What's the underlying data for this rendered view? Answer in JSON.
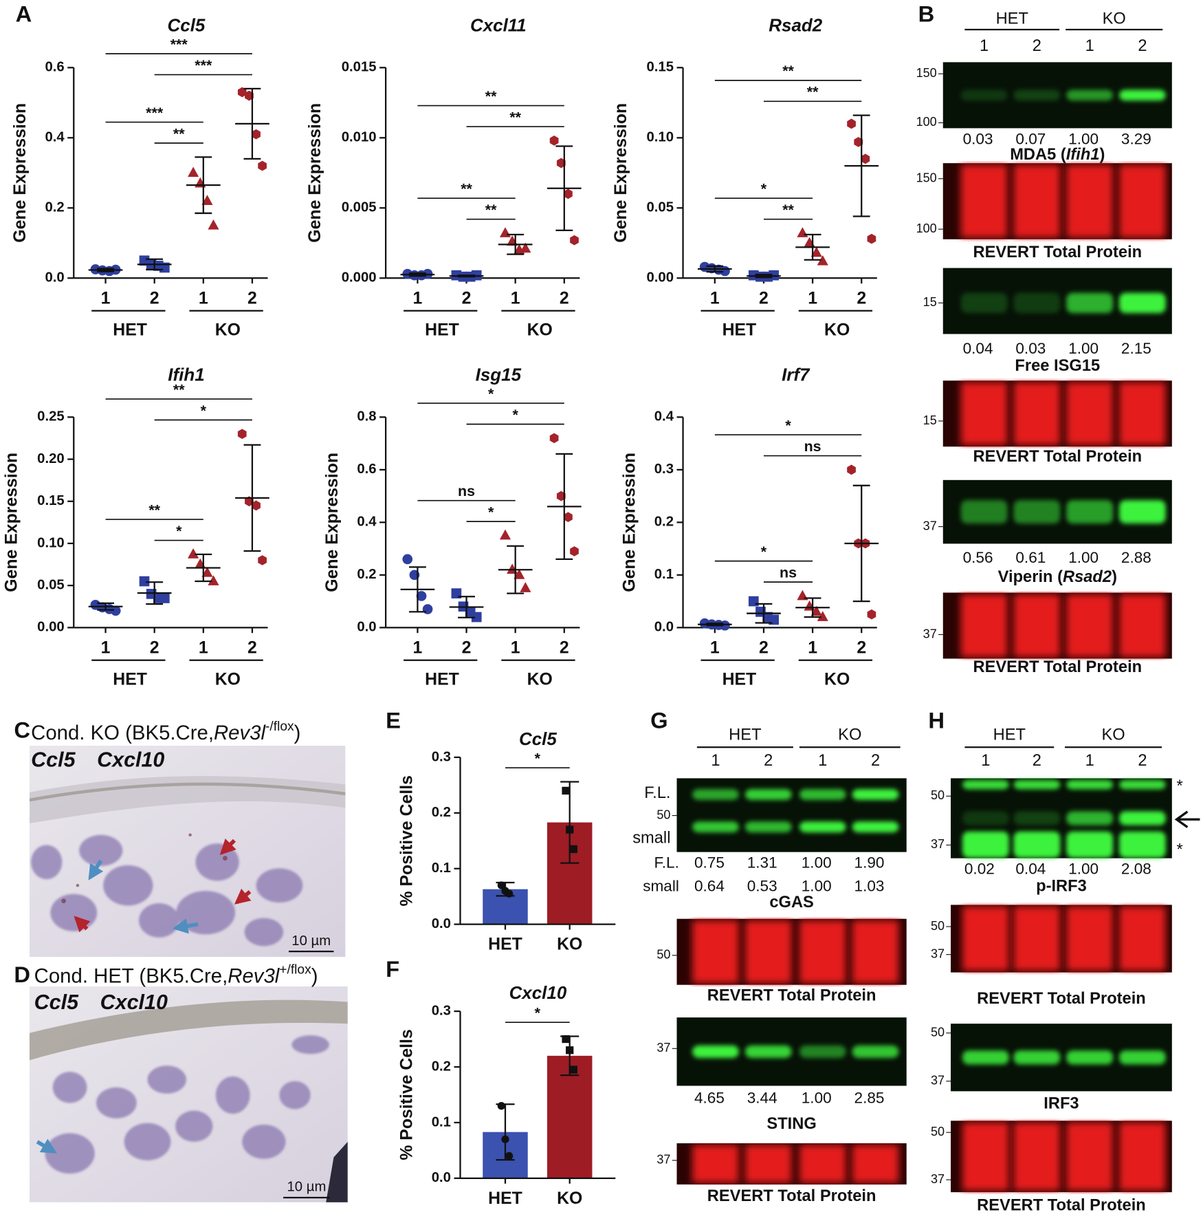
{
  "panel_letters": [
    "A",
    "B",
    "C",
    "D",
    "E",
    "F",
    "G",
    "H"
  ],
  "chart_data": [
    {
      "type": "dotplot",
      "title": "Ccl5",
      "y_label": "Gene Expression",
      "categories": [
        "1",
        "2",
        "1",
        "2"
      ],
      "groups": [
        "HET",
        "KO"
      ],
      "colors": [
        "#2f3f9f",
        "#2f3f9f",
        "#a4232b",
        "#a4232b"
      ],
      "markers": [
        "circle",
        "square",
        "triangle",
        "hexagon"
      ],
      "points": [
        [
          0.025,
          0.022,
          0.02,
          0.024
        ],
        [
          0.05,
          0.04,
          0.035,
          0.03
        ],
        [
          0.3,
          0.27,
          0.22,
          0.15
        ],
        [
          0.53,
          0.52,
          0.41,
          0.32
        ]
      ],
      "means": [
        0.023,
        0.039,
        0.265,
        0.44
      ],
      "sds": [
        0.004,
        0.015,
        0.08,
        0.1
      ],
      "ylim": [
        0,
        0.6
      ],
      "yticks": [
        {
          "value": 0,
          "label": "0.0"
        },
        0.2,
        0.4,
        0.6
      ],
      "comparisons": [
        {
          "pair": [
            0,
            3
          ],
          "label": "***"
        },
        {
          "pair": [
            1,
            3
          ],
          "label": "***"
        },
        {
          "pair": [
            0,
            2
          ],
          "label": "***"
        },
        {
          "pair": [
            1,
            2
          ],
          "label": "**"
        }
      ]
    },
    {
      "type": "dotplot",
      "title": "Cxcl11",
      "y_label": "Gene Expression",
      "categories": [
        "1",
        "2",
        "1",
        "2"
      ],
      "groups": [
        "HET",
        "KO"
      ],
      "colors": [
        "#2f3f9f",
        "#2f3f9f",
        "#a4232b",
        "#a4232b"
      ],
      "markers": [
        "circle",
        "square",
        "triangle",
        "hexagon"
      ],
      "points": [
        [
          0.0003,
          0.0002,
          0.0002,
          0.0003
        ],
        [
          0.0002,
          0.0001,
          0.0001,
          0.0002
        ],
        [
          0.0032,
          0.0026,
          0.002,
          0.0021
        ],
        [
          0.0098,
          0.0082,
          0.006,
          0.0027
        ]
      ],
      "means": [
        0.00025,
        0.00015,
        0.0024,
        0.0064
      ],
      "sds": [
        0.0001,
        5e-05,
        0.0007,
        0.003
      ],
      "ylim": [
        0,
        0.015
      ],
      "yticks": [
        {
          "value": 0,
          "label": "0.000"
        },
        0.005,
        {
          "value": 0.01,
          "label": "0.010"
        },
        0.015
      ],
      "comparisons": [
        {
          "pair": [
            0,
            3
          ],
          "label": "**"
        },
        {
          "pair": [
            1,
            3
          ],
          "label": "**"
        },
        {
          "pair": [
            0,
            2
          ],
          "label": "**"
        },
        {
          "pair": [
            1,
            2
          ],
          "label": "**"
        }
      ]
    },
    {
      "type": "dotplot",
      "title": "Rsad2",
      "y_label": "Gene Expression",
      "categories": [
        "1",
        "2",
        "1",
        "2"
      ],
      "groups": [
        "HET",
        "KO"
      ],
      "colors": [
        "#2f3f9f",
        "#2f3f9f",
        "#a4232b",
        "#a4232b"
      ],
      "markers": [
        "circle",
        "square",
        "triangle",
        "hexagon"
      ],
      "points": [
        [
          0.008,
          0.007,
          0.006,
          0.005
        ],
        [
          0.002,
          0.001,
          0.001,
          0.002
        ],
        [
          0.032,
          0.025,
          0.018,
          0.012
        ],
        [
          0.11,
          0.097,
          0.085,
          0.028
        ]
      ],
      "means": [
        0.0065,
        0.0015,
        0.022,
        0.08
      ],
      "sds": [
        0.002,
        0.001,
        0.009,
        0.036
      ],
      "ylim": [
        0,
        0.15
      ],
      "yticks": [
        {
          "value": 0,
          "label": "0.00"
        },
        0.05,
        {
          "value": 0.1,
          "label": "0.10"
        },
        0.15
      ],
      "comparisons": [
        {
          "pair": [
            0,
            3
          ],
          "label": "**"
        },
        {
          "pair": [
            1,
            3
          ],
          "label": "**"
        },
        {
          "pair": [
            0,
            2
          ],
          "label": "*"
        },
        {
          "pair": [
            1,
            2
          ],
          "label": "**"
        }
      ]
    },
    {
      "type": "dotplot",
      "title": "Ifih1",
      "y_label": "Gene Expression",
      "categories": [
        "1",
        "2",
        "1",
        "2"
      ],
      "groups": [
        "HET",
        "KO"
      ],
      "colors": [
        "#2f3f9f",
        "#2f3f9f",
        "#a4232b",
        "#a4232b"
      ],
      "markers": [
        "circle",
        "square",
        "triangle",
        "hexagon"
      ],
      "points": [
        [
          0.027,
          0.024,
          0.022,
          0.02
        ],
        [
          0.055,
          0.04,
          0.035,
          0.035
        ],
        [
          0.087,
          0.075,
          0.065,
          0.055
        ],
        [
          0.23,
          0.15,
          0.145,
          0.08
        ]
      ],
      "means": [
        0.025,
        0.041,
        0.071,
        0.154
      ],
      "sds": [
        0.004,
        0.013,
        0.016,
        0.063
      ],
      "ylim": [
        0,
        0.25
      ],
      "yticks": [
        {
          "value": 0,
          "label": "0.00"
        },
        0.05,
        {
          "value": 0.1,
          "label": "0.10"
        },
        0.15,
        {
          "value": 0.2,
          "label": "0.20"
        },
        0.25
      ],
      "comparisons": [
        {
          "pair": [
            0,
            3
          ],
          "label": "**"
        },
        {
          "pair": [
            1,
            3
          ],
          "label": "*"
        },
        {
          "pair": [
            0,
            2
          ],
          "label": "**"
        },
        {
          "pair": [
            1,
            2
          ],
          "label": "*"
        }
      ]
    },
    {
      "type": "dotplot",
      "title": "Isg15",
      "y_label": "Gene Expression",
      "categories": [
        "1",
        "2",
        "1",
        "2"
      ],
      "groups": [
        "HET",
        "KO"
      ],
      "colors": [
        "#2f3f9f",
        "#2f3f9f",
        "#a4232b",
        "#a4232b"
      ],
      "markers": [
        "circle",
        "square",
        "triangle",
        "hexagon"
      ],
      "points": [
        [
          0.26,
          0.2,
          0.12,
          0.07
        ],
        [
          0.13,
          0.08,
          0.06,
          0.04
        ],
        [
          0.35,
          0.22,
          0.2,
          0.15
        ],
        [
          0.72,
          0.5,
          0.42,
          0.29
        ]
      ],
      "means": [
        0.145,
        0.078,
        0.22,
        0.46
      ],
      "sds": [
        0.085,
        0.04,
        0.09,
        0.2
      ],
      "ylim": [
        0,
        0.8
      ],
      "yticks": [
        {
          "value": 0,
          "label": "0.0"
        },
        0.2,
        0.4,
        0.6,
        0.8
      ],
      "comparisons": [
        {
          "pair": [
            0,
            3
          ],
          "label": "*"
        },
        {
          "pair": [
            1,
            3
          ],
          "label": "*"
        },
        {
          "pair": [
            0,
            2
          ],
          "label": "ns"
        },
        {
          "pair": [
            1,
            2
          ],
          "label": "*"
        }
      ]
    },
    {
      "type": "dotplot",
      "title": "Irf7",
      "y_label": "Gene Expression",
      "categories": [
        "1",
        "2",
        "1",
        "2"
      ],
      "groups": [
        "HET",
        "KO"
      ],
      "colors": [
        "#2f3f9f",
        "#2f3f9f",
        "#a4232b",
        "#a4232b"
      ],
      "markers": [
        "circle",
        "square",
        "triangle",
        "hexagon"
      ],
      "points": [
        [
          0.008,
          0.006,
          0.005,
          0.004
        ],
        [
          0.05,
          0.03,
          0.02,
          0.015
        ],
        [
          0.06,
          0.04,
          0.03,
          0.02
        ],
        [
          0.3,
          0.16,
          0.16,
          0.025
        ]
      ],
      "means": [
        0.006,
        0.027,
        0.038,
        0.16
      ],
      "sds": [
        0.002,
        0.018,
        0.018,
        0.11
      ],
      "ylim": [
        0,
        0.4
      ],
      "yticks": [
        {
          "value": 0,
          "label": "0.0"
        },
        0.1,
        0.2,
        0.3,
        0.4
      ],
      "comparisons": [
        {
          "pair": [
            0,
            3
          ],
          "label": "*"
        },
        {
          "pair": [
            1,
            3
          ],
          "label": "ns"
        },
        {
          "pair": [
            0,
            2
          ],
          "label": "*"
        },
        {
          "pair": [
            1,
            2
          ],
          "label": "ns"
        }
      ]
    },
    {
      "type": "bar",
      "title": "Ccl5",
      "y_label": "% Positive Cells",
      "categories": [
        "HET",
        "KO"
      ],
      "colors": [
        "#3b52b0",
        "#9e1c24"
      ],
      "values": [
        0.063,
        0.183
      ],
      "errors": [
        0.012,
        0.073
      ],
      "points": [
        [
          0.07,
          0.06,
          0.055
        ],
        [
          0.24,
          0.17,
          0.135
        ]
      ],
      "ylim": [
        0,
        0.3
      ],
      "yticks": [
        {
          "value": 0,
          "label": "0.0"
        },
        0.1,
        0.2,
        0.3
      ],
      "comparisons": [
        {
          "pair": [
            0,
            1
          ],
          "label": "*"
        }
      ]
    },
    {
      "type": "bar",
      "title": "Cxcl10",
      "y_label": "% Positive Cells",
      "categories": [
        "HET",
        "KO"
      ],
      "colors": [
        "#3b52b0",
        "#9e1c24"
      ],
      "values": [
        0.083,
        0.22
      ],
      "errors": [
        0.05,
        0.035
      ],
      "points": [
        [
          0.13,
          0.07,
          0.04
        ],
        [
          0.25,
          0.23,
          0.195
        ]
      ],
      "ylim": [
        0,
        0.3
      ],
      "yticks": [
        {
          "value": 0,
          "label": "0.0"
        },
        0.1,
        0.2,
        0.3
      ],
      "comparisons": [
        {
          "pair": [
            0,
            1
          ],
          "label": "*"
        }
      ]
    }
  ],
  "blot_panels": [
    {
      "groups": [
        "HET",
        "KO"
      ],
      "lanes": [
        "1",
        "2",
        "1",
        "2"
      ],
      "blots": [
        {
          "channel": "green",
          "markers": [
            "150",
            "100"
          ],
          "quant": [
            "0.03",
            "0.07",
            "1.00",
            "3.29"
          ],
          "caption": [
            "MDA5 (",
            "Ifih1",
            ")"
          ]
        },
        {
          "channel": "red",
          "markers": [
            "150",
            "100"
          ],
          "caption": [
            "REVERT Total Protein"
          ]
        },
        {
          "channel": "green",
          "markers": [
            "15"
          ],
          "quant": [
            "0.04",
            "0.03",
            "1.00",
            "2.15"
          ],
          "caption": [
            "Free ISG15"
          ]
        },
        {
          "channel": "red",
          "markers": [
            "15"
          ],
          "caption": [
            "REVERT Total Protein"
          ]
        },
        {
          "channel": "green",
          "markers": [
            "37"
          ],
          "quant": [
            "0.56",
            "0.61",
            "1.00",
            "2.88"
          ],
          "caption": [
            "Viperin (",
            "Rsad2",
            ")"
          ]
        },
        {
          "channel": "red",
          "markers": [
            "37"
          ],
          "caption": [
            "REVERT Total Protein"
          ]
        }
      ]
    },
    {
      "groups": [
        "HET",
        "KO"
      ],
      "lanes": [
        "1",
        "2",
        "1",
        "2"
      ],
      "blots": [
        {
          "channel": "green",
          "markers": [
            "F.L.",
            "50",
            "small"
          ],
          "quant_rows": [
            {
              "label": "F.L.",
              "values": [
                "0.75",
                "1.31",
                "1.00",
                "1.90"
              ]
            },
            {
              "label": "small",
              "values": [
                "0.64",
                "0.53",
                "1.00",
                "1.03"
              ]
            }
          ],
          "caption": [
            "cGAS"
          ]
        },
        {
          "channel": "red",
          "markers": [
            "50"
          ],
          "caption": [
            "REVERT Total Protein"
          ]
        },
        {
          "channel": "green",
          "markers": [
            "37"
          ],
          "quant": [
            "4.65",
            "3.44",
            "1.00",
            "2.85"
          ],
          "caption": [
            "STING"
          ]
        },
        {
          "channel": "red",
          "markers": [
            "37"
          ],
          "caption": [
            "REVERT Total Protein"
          ]
        }
      ]
    },
    {
      "groups": [
        "HET",
        "KO"
      ],
      "lanes": [
        "1",
        "2",
        "1",
        "2"
      ],
      "blots": [
        {
          "channel": "green",
          "markers": [
            "50",
            "37"
          ],
          "side_labels": [
            "*",
            "*"
          ],
          "quant": [
            "0.02",
            "0.04",
            "1.00",
            "2.08"
          ],
          "caption": [
            "p-IRF3"
          ]
        },
        {
          "channel": "red",
          "markers": [
            "50",
            "37"
          ],
          "caption": [
            "REVERT Total Protein"
          ]
        },
        {
          "channel": "green",
          "markers": [
            "50",
            "37"
          ],
          "caption": [
            "IRF3"
          ]
        },
        {
          "channel": "red",
          "markers": [
            "50",
            "37"
          ],
          "caption": [
            "REVERT Total Protein"
          ]
        }
      ]
    }
  ],
  "images": [
    {
      "title": [
        "Cond. KO (BK5.Cre,",
        "Rev3l",
        "-/flox",
        ")"
      ],
      "probes": [
        "Ccl5",
        "Cxcl10"
      ],
      "scale_bar": "10 µm"
    },
    {
      "title": [
        "Cond. HET (BK5.Cre,",
        "Rev3l",
        "+/flox",
        ")"
      ],
      "probes": [
        "Ccl5",
        "Cxcl10"
      ],
      "scale_bar": "10 µm"
    }
  ]
}
